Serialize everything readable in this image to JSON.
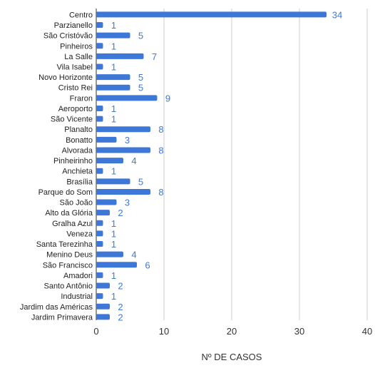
{
  "chart_data": {
    "type": "bar",
    "orientation": "horizontal",
    "title": "",
    "xlabel": "Nº DE CASOS",
    "ylabel": "",
    "xlim": [
      0,
      40
    ],
    "x_ticks": [
      0,
      10,
      20,
      30,
      40
    ],
    "grid": true,
    "legend": "none",
    "bar_color": "#3d78d8",
    "value_label_color": "#3d78d8",
    "categories": [
      "Centro",
      "Parzianello",
      "São Cristóvão",
      "Pinheiros",
      "La Salle",
      "Vila Isabel",
      "Novo Horizonte",
      "Cristo Rei",
      "Fraron",
      "Aeroporto",
      "São Vicente",
      "Planalto",
      "Bonatto",
      "Alvorada",
      "Pinheirinho",
      "Anchieta",
      "Brasília",
      "Parque do Som",
      "São João",
      "Alto da Glória",
      "Gralha Azul",
      "Veneza",
      "Santa Terezinha",
      "Menino Deus",
      "São Francisco",
      "Amadori",
      "Santo Antônio",
      "Industrial",
      "Jardim das Américas",
      "Jardim Primavera"
    ],
    "values": [
      34,
      1,
      5,
      1,
      7,
      1,
      5,
      5,
      9,
      1,
      1,
      8,
      3,
      8,
      4,
      1,
      5,
      8,
      3,
      2,
      1,
      1,
      1,
      4,
      6,
      1,
      2,
      1,
      2,
      2
    ]
  }
}
